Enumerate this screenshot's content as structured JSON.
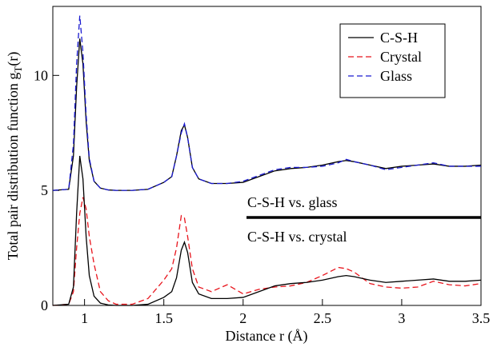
{
  "chart_data": {
    "type": "line",
    "xlabel": "Distance r (Å)",
    "ylabel": [
      "Total pair distribution function g",
      "T",
      "(r)"
    ],
    "annotations": [
      "C-S-H vs. glass",
      "C-S-H vs. crystal"
    ],
    "xlim": [
      0.8,
      3.5
    ],
    "ylim": [
      0,
      13
    ],
    "xticks": [
      1,
      1.5,
      2,
      2.5,
      3,
      3.5
    ],
    "yticks": [
      0,
      5,
      10
    ],
    "legend": "upper-right",
    "x": [
      0.8,
      0.9,
      0.93,
      0.95,
      0.97,
      0.99,
      1.01,
      1.03,
      1.06,
      1.1,
      1.15,
      1.2,
      1.3,
      1.4,
      1.5,
      1.55,
      1.58,
      1.61,
      1.63,
      1.65,
      1.68,
      1.72,
      1.8,
      1.9,
      2.0,
      2.1,
      2.2,
      2.3,
      2.4,
      2.5,
      2.6,
      2.65,
      2.7,
      2.8,
      2.9,
      3.0,
      3.1,
      3.2,
      3.3,
      3.4,
      3.5
    ],
    "series": [
      {
        "name": "C-S-H",
        "color": "#000000",
        "dash": false,
        "values": [
          5,
          5.05,
          6.5,
          9.5,
          11.6,
          10.5,
          8.0,
          6.3,
          5.4,
          5.1,
          5.02,
          5,
          5,
          5.05,
          5.35,
          5.6,
          6.5,
          7.6,
          7.85,
          7.3,
          6.0,
          5.5,
          5.3,
          5.3,
          5.35,
          5.6,
          5.85,
          5.95,
          6.0,
          6.1,
          6.25,
          6.3,
          6.25,
          6.1,
          5.95,
          6.05,
          6.1,
          6.15,
          6.05,
          6.05,
          6.1
        ]
      },
      {
        "name": "Crystal",
        "color": "#e8141c",
        "dash": true,
        "values": [
          0,
          0.05,
          0.6,
          2.5,
          4.0,
          4.7,
          4.2,
          3.0,
          1.8,
          0.6,
          0.2,
          0.05,
          0.05,
          0.3,
          1.1,
          1.6,
          2.5,
          3.9,
          3.8,
          3.0,
          1.6,
          0.8,
          0.6,
          0.9,
          0.5,
          0.7,
          0.8,
          0.85,
          1.0,
          1.3,
          1.65,
          1.6,
          1.45,
          0.95,
          0.8,
          0.75,
          0.8,
          1.05,
          0.9,
          0.85,
          0.95
        ]
      },
      {
        "name": "Glass",
        "color": "#1a1ad0",
        "dash": true,
        "values": [
          5,
          5.05,
          7.0,
          10.5,
          12.6,
          11.0,
          8.3,
          6.4,
          5.4,
          5.1,
          5.02,
          5,
          5,
          5.05,
          5.35,
          5.6,
          6.5,
          7.5,
          7.9,
          7.3,
          6.0,
          5.5,
          5.3,
          5.3,
          5.4,
          5.65,
          5.9,
          6.0,
          6.0,
          6.05,
          6.2,
          6.35,
          6.25,
          6.1,
          5.9,
          6.0,
          6.1,
          6.2,
          6.05,
          6.05,
          6.05
        ]
      },
      {
        "name": "C-S-H",
        "color": "#000000",
        "dash": false,
        "values": [
          0,
          0.05,
          0.8,
          4.0,
          6.5,
          5.5,
          3.0,
          1.3,
          0.4,
          0.1,
          0.02,
          0,
          0,
          0.05,
          0.35,
          0.6,
          1.2,
          2.4,
          2.75,
          2.3,
          1.0,
          0.5,
          0.3,
          0.3,
          0.35,
          0.6,
          0.85,
          0.95,
          1.0,
          1.1,
          1.25,
          1.3,
          1.25,
          1.1,
          1.0,
          1.05,
          1.1,
          1.15,
          1.05,
          1.05,
          1.1
        ]
      }
    ]
  }
}
